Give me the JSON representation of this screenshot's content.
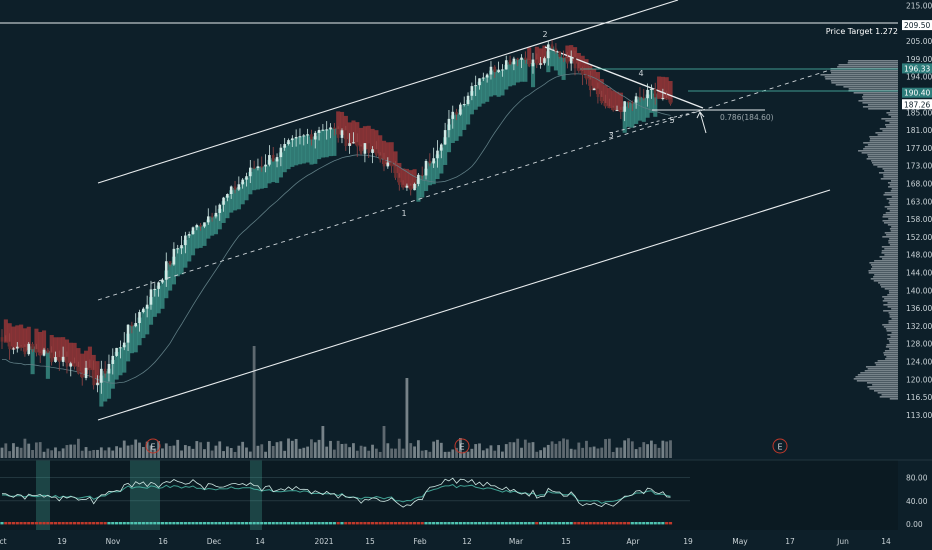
{
  "chart_data": {
    "type": "candlestick",
    "price_axis": {
      "ticks": [
        215.0,
        210.0,
        205.0,
        199.0,
        194.0,
        190.0,
        185.0,
        181.0,
        177.0,
        173.0,
        168.0,
        163.0,
        158.0,
        152.0,
        148.0,
        144.0,
        140.0,
        136.0,
        132.0,
        128.0,
        124.0,
        120.0,
        116.5,
        113.0
      ],
      "tick_labels": [
        "215.00",
        "210.00",
        "205.00",
        "199.00",
        "194.00",
        "190.00",
        "185.00",
        "181.00",
        "177.00",
        "173.00",
        "168.00",
        "163.00",
        "158.00",
        "152.00",
        "148.00",
        "144.00",
        "140.00",
        "136.00",
        "132.00",
        "128.00",
        "124.00",
        "120.00",
        "116.50",
        "113.00"
      ],
      "tags": [
        {
          "text": "209.50",
          "value": 209.5,
          "bg": "#ffffff",
          "fg": "#0d1f29"
        },
        {
          "text": "196.33",
          "value": 196.33,
          "bg": "#2e7d7b",
          "fg": "#ffffff"
        },
        {
          "text": "190.40",
          "value": 190.4,
          "bg": "#2e7d7b",
          "fg": "#ffffff"
        },
        {
          "text": "187.26",
          "value": 187.26,
          "bg": "#ffffff",
          "fg": "#0d1f29"
        }
      ]
    },
    "oscillator_axis": {
      "range": [
        0,
        100
      ],
      "ticks": [
        80,
        40,
        0
      ],
      "tick_labels": [
        "80.00",
        "40.00",
        "0.00"
      ]
    },
    "time_axis": {
      "labels": [
        "ct",
        "19",
        "Nov",
        "16",
        "Dec",
        "14",
        "2021",
        "15",
        "Feb",
        "12",
        "Mar",
        "15",
        "Apr",
        "19",
        "May",
        "17",
        "Jun",
        "14"
      ]
    },
    "annotations": {
      "price_target": "Price Target 1.272",
      "fib_level": "0.786(184.60)",
      "waves": [
        "1",
        "2",
        "3",
        "4",
        "5"
      ],
      "earnings_markers": [
        "E",
        "E",
        "E"
      ]
    },
    "ohlc_anchors": [
      {
        "x": "Oct 02",
        "close": 128.5
      },
      {
        "x": "Oct 26",
        "close": 124.5
      },
      {
        "x": "Nov 04",
        "close": 119.5
      },
      {
        "x": "Nov 11",
        "close": 133.5
      },
      {
        "x": "Dec 03",
        "close": 151.0
      },
      {
        "x": "Dec 14",
        "close": 172.5
      },
      {
        "x": "Jan 05",
        "close": 182.0
      },
      {
        "x": "Jan 20",
        "close": 174.0
      },
      {
        "x": "Jan 28",
        "close": 165.5
      },
      {
        "x": "Feb 01",
        "close": 173.0
      },
      {
        "x": "Feb 12",
        "close": 193.5
      },
      {
        "x": "Feb 26",
        "close": 200.0
      },
      {
        "x": "Mar 03",
        "close": 197.0
      },
      {
        "x": "Mar 08",
        "close": 202.5
      },
      {
        "x": "Mar 19",
        "close": 197.0
      },
      {
        "x": "Mar 26",
        "close": 185.0
      },
      {
        "x": "Apr 05",
        "close": 190.0
      },
      {
        "x": "Apr 16",
        "close": 187.3
      }
    ],
    "colors": {
      "background": "#0d1f29",
      "bullish": "#cfe8e4",
      "bullish_cloud": "#4fc3b0",
      "bearish_cloud": "#b33a3a",
      "volume": "#8a9499",
      "channel": "#e8ecee",
      "oscillator_line": "#cfe8e4"
    },
    "grid": false
  }
}
